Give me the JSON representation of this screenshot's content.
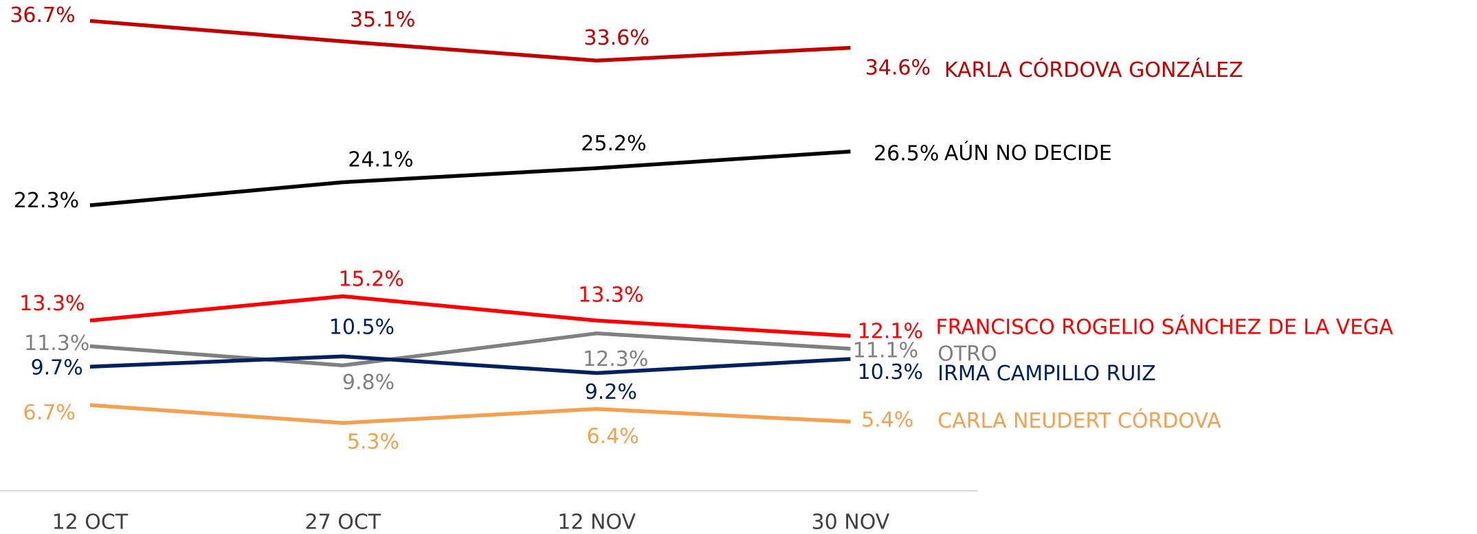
{
  "chart_data": {
    "type": "line",
    "categories": [
      "12 OCT",
      "27 OCT",
      "12 NOV",
      "30 NOV"
    ],
    "series": [
      {
        "name": "KARLA CÓRDOVA GONZÁLEZ",
        "color": "#c00000",
        "values": [
          36.7,
          35.1,
          33.6,
          34.6
        ],
        "value_labels": [
          "36.7%",
          "35.1%",
          "33.6%",
          "34.6%"
        ]
      },
      {
        "name": "AÚN NO DECIDE",
        "color": "#000000",
        "values": [
          22.3,
          24.1,
          25.2,
          26.5
        ],
        "value_labels": [
          "22.3%",
          "24.1%",
          "25.2%",
          "26.5%"
        ]
      },
      {
        "name": "FRANCISCO ROGELIO SÁNCHEZ DE LA VEGA",
        "color": "#ff0000",
        "values": [
          13.3,
          15.2,
          13.3,
          12.1
        ],
        "value_labels": [
          "13.3%",
          "15.2%",
          "13.3%",
          "12.1%"
        ]
      },
      {
        "name": "OTRO",
        "color": "#808080",
        "values": [
          11.3,
          9.8,
          12.3,
          11.1
        ],
        "value_labels": [
          "11.3%",
          "9.8%",
          "12.3%",
          "11.1%"
        ]
      },
      {
        "name": "IRMA CAMPILLO RUIZ",
        "color": "#002060",
        "values": [
          9.7,
          10.5,
          9.2,
          10.3
        ],
        "value_labels": [
          "9.7%",
          "10.5%",
          "9.2%",
          "10.3%"
        ]
      },
      {
        "name": "CARLA NEUDERT CÓRDOVA",
        "color": "#f4a050",
        "values": [
          6.7,
          5.3,
          6.4,
          5.4
        ],
        "value_labels": [
          "6.7%",
          "5.3%",
          "6.4%",
          "5.4%"
        ]
      }
    ]
  }
}
